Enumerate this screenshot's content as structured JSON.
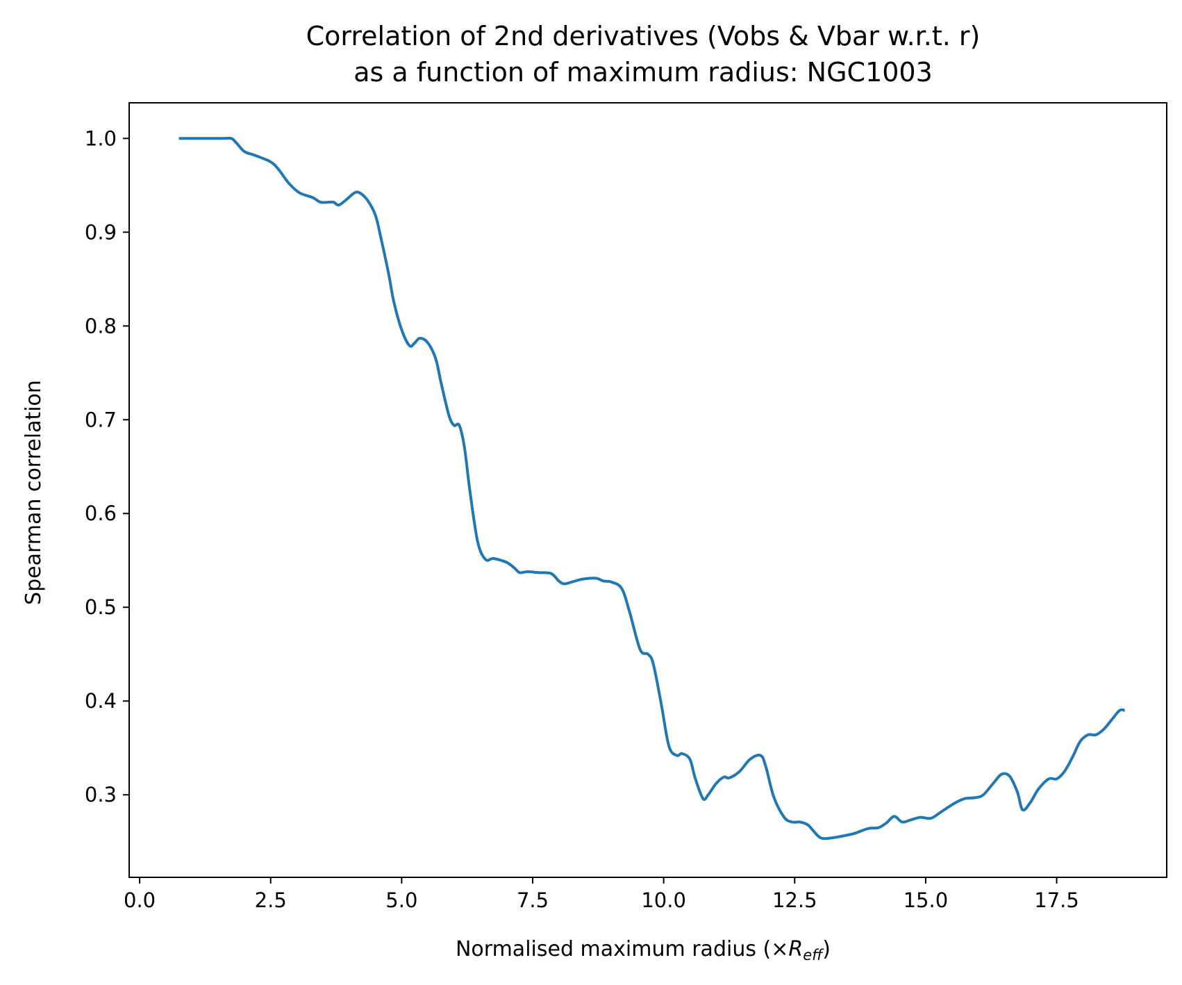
{
  "chart_data": {
    "type": "line",
    "title_line1": "Correlation of 2nd derivatives (Vobs & Vbar w.r.t. r)",
    "title_line2": "as a function of maximum radius: NGC1003",
    "xlabel_main": "Normalised maximum radius (×",
    "xlabel_symbol": "R",
    "xlabel_sub": "eff",
    "xlabel_end": ")",
    "ylabel": "Spearman correlation",
    "xlim": [
      -0.2,
      19.6
    ],
    "ylim": [
      0.212,
      1.038
    ],
    "grid": false,
    "x_ticks": [
      {
        "value": 0.0,
        "label": "0.0"
      },
      {
        "value": 2.5,
        "label": "2.5"
      },
      {
        "value": 5.0,
        "label": "5.0"
      },
      {
        "value": 7.5,
        "label": "7.5"
      },
      {
        "value": 10.0,
        "label": "10.0"
      },
      {
        "value": 12.5,
        "label": "12.5"
      },
      {
        "value": 15.0,
        "label": "15.0"
      },
      {
        "value": 17.5,
        "label": "17.5"
      }
    ],
    "y_ticks": [
      {
        "value": 0.3,
        "label": "0.3"
      },
      {
        "value": 0.4,
        "label": "0.4"
      },
      {
        "value": 0.5,
        "label": "0.5"
      },
      {
        "value": 0.6,
        "label": "0.6"
      },
      {
        "value": 0.7,
        "label": "0.7"
      },
      {
        "value": 0.8,
        "label": "0.8"
      },
      {
        "value": 0.9,
        "label": "0.9"
      },
      {
        "value": 1.0,
        "label": "1.0"
      }
    ],
    "series": [
      {
        "color": "#1f77b4",
        "x": [
          0.75,
          1.0,
          1.3,
          1.6,
          1.75,
          1.85,
          2.0,
          2.2,
          2.5,
          2.65,
          2.85,
          3.05,
          3.3,
          3.45,
          3.6,
          3.7,
          3.8,
          3.95,
          4.1,
          4.2,
          4.35,
          4.5,
          4.6,
          4.75,
          4.85,
          5.0,
          5.15,
          5.25,
          5.35,
          5.5,
          5.65,
          5.75,
          5.9,
          6.0,
          6.1,
          6.2,
          6.3,
          6.45,
          6.6,
          6.75,
          7.0,
          7.15,
          7.25,
          7.4,
          7.6,
          7.85,
          8.0,
          8.1,
          8.25,
          8.45,
          8.7,
          8.85,
          9.0,
          9.2,
          9.35,
          9.55,
          9.7,
          9.8,
          9.95,
          10.1,
          10.25,
          10.35,
          10.5,
          10.6,
          10.75,
          10.85,
          11.0,
          11.15,
          11.25,
          11.45,
          11.65,
          11.85,
          11.95,
          12.1,
          12.3,
          12.45,
          12.6,
          12.75,
          12.85,
          13.0,
          13.2,
          13.5,
          13.65,
          13.9,
          14.1,
          14.25,
          14.4,
          14.55,
          14.7,
          14.9,
          15.1,
          15.3,
          15.55,
          15.75,
          15.95,
          16.1,
          16.3,
          16.45,
          16.6,
          16.75,
          16.85,
          17.0,
          17.15,
          17.35,
          17.5,
          17.65,
          17.8,
          17.95,
          18.1,
          18.25,
          18.4,
          18.55,
          18.7,
          18.8
        ],
        "y": [
          1.0,
          1.0,
          1.0,
          1.0,
          1.0,
          0.995,
          0.986,
          0.982,
          0.975,
          0.967,
          0.952,
          0.942,
          0.937,
          0.932,
          0.932,
          0.932,
          0.929,
          0.935,
          0.942,
          0.942,
          0.934,
          0.918,
          0.895,
          0.856,
          0.826,
          0.796,
          0.779,
          0.782,
          0.787,
          0.782,
          0.765,
          0.74,
          0.705,
          0.694,
          0.694,
          0.67,
          0.625,
          0.57,
          0.551,
          0.552,
          0.548,
          0.542,
          0.537,
          0.538,
          0.537,
          0.536,
          0.528,
          0.525,
          0.527,
          0.53,
          0.531,
          0.528,
          0.527,
          0.52,
          0.495,
          0.455,
          0.45,
          0.44,
          0.398,
          0.352,
          0.342,
          0.344,
          0.338,
          0.318,
          0.296,
          0.3,
          0.312,
          0.319,
          0.318,
          0.325,
          0.338,
          0.342,
          0.33,
          0.298,
          0.276,
          0.271,
          0.271,
          0.268,
          0.262,
          0.254,
          0.254,
          0.257,
          0.259,
          0.264,
          0.265,
          0.27,
          0.277,
          0.271,
          0.273,
          0.276,
          0.275,
          0.282,
          0.291,
          0.296,
          0.297,
          0.3,
          0.313,
          0.322,
          0.32,
          0.303,
          0.284,
          0.292,
          0.306,
          0.317,
          0.317,
          0.325,
          0.34,
          0.357,
          0.364,
          0.364,
          0.37,
          0.38,
          0.39,
          0.39
        ]
      }
    ]
  }
}
